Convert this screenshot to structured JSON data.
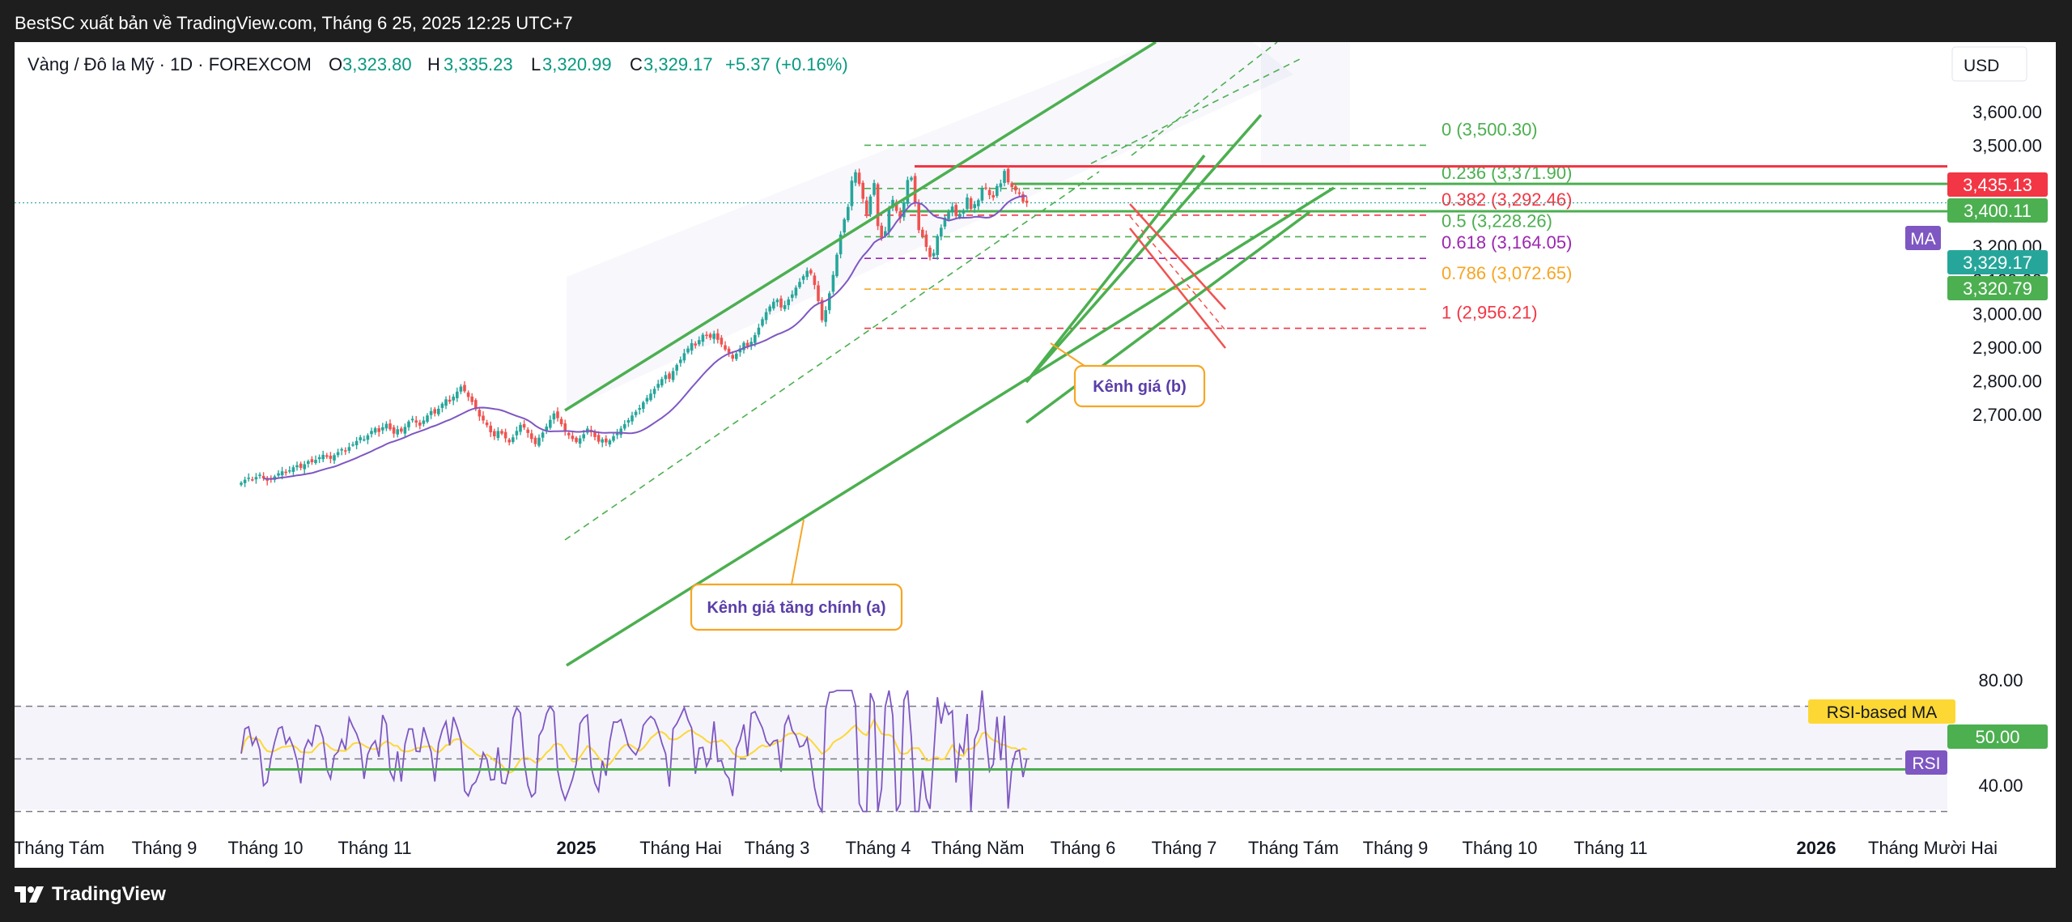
{
  "header": {
    "publisher_line": "BestSC xuất bản về TradingView.com, Tháng 6 25, 2025 12:25 UTC+7"
  },
  "legend": {
    "symbol": "Vàng / Đô la Mỹ · 1D · FOREXCOM",
    "o_label": "O",
    "o_value": "3,323.80",
    "h_label": "H",
    "h_value": "3,335.23",
    "l_label": "L",
    "l_value": "3,320.99",
    "c_label": "C",
    "c_value": "3,329.17",
    "change": "+5.37 (+0.16%)"
  },
  "currency": "USD",
  "colors": {
    "up": "#26a69a",
    "down": "#ef5350",
    "channel": "#4caf50",
    "ma": "#7e57c2",
    "rsi": "#7e57c2",
    "rsi_ma": "#fdd835",
    "resistance": "#f23645",
    "fib_orange": "#f6a623"
  },
  "annotations": {
    "channel_b": "Kênh giá (b)",
    "channel_a": "Kênh giá tăng chính (a)"
  },
  "tags": {
    "ma": "MA",
    "rsi": "RSI",
    "rsi_ma": "RSI-based MA"
  },
  "footer": {
    "brand": "TradingView"
  },
  "chart_data": {
    "type": "candlestick",
    "timeframe": "1D",
    "price_axis": {
      "ticks": [
        "3,600.00",
        "3,500.00",
        "3,400.00",
        "3,300.00",
        "3,200.00",
        "3,100.00",
        "3,000.00",
        "2,900.00",
        "2,800.00",
        "2,700.00"
      ],
      "range": [
        2620,
        3720
      ]
    },
    "time_axis": {
      "labels": [
        "Tháng Tám",
        "Tháng 9",
        "Tháng 10",
        "Tháng 11",
        "2025",
        "Tháng Hai",
        "Tháng 3",
        "Tháng 4",
        "Tháng Năm",
        "Tháng 6",
        "Tháng 7",
        "Tháng Tám",
        "Tháng 9",
        "Tháng 10",
        "Tháng 11",
        "2026",
        "Tháng Mười Hai"
      ],
      "bold": [
        "2025",
        "2026"
      ]
    },
    "price_labels": [
      {
        "text": "3,435.13",
        "value": 3435.13,
        "color": "#f23645"
      },
      {
        "text": "3,400.11",
        "value": 3400.11,
        "color": "#4caf50"
      },
      {
        "text": "3,329.17",
        "value": 3329.17,
        "color": "#26a69a"
      },
      {
        "text": "3,320.79",
        "value": 3320.79,
        "color": "#4caf50"
      }
    ],
    "fibonacci": [
      {
        "level": "0",
        "price": 3500.3,
        "label": "0 (3,500.30)",
        "color": "#4caf50"
      },
      {
        "level": "0.236",
        "price": 3371.9,
        "label": "0.236 (3,371.90)",
        "color": "#4caf50"
      },
      {
        "level": "0.382",
        "price": 3292.46,
        "label": "0.382 (3,292.46)",
        "color": "#f23645"
      },
      {
        "level": "0.5",
        "price": 3228.26,
        "label": "0.5 (3,228.26)",
        "color": "#4caf50"
      },
      {
        "level": "0.618",
        "price": 3164.05,
        "label": "0.618 (3,164.05)",
        "color": "#9c27b0"
      },
      {
        "level": "0.786",
        "price": 3072.65,
        "label": "0.786 (3,072.65)",
        "color": "#f6a623"
      },
      {
        "level": "1",
        "price": 2956.21,
        "label": "1 (2,956.21)",
        "color": "#f23645"
      }
    ],
    "horizontal_lines": [
      {
        "price": 3435.13,
        "color": "#f23645"
      },
      {
        "price": 3400.11,
        "color": "#4caf50"
      },
      {
        "price": 3320.79,
        "color": "#4caf50"
      }
    ],
    "closes": [
      2497,
      2506,
      2512,
      2507,
      2514,
      2521,
      2510,
      2503,
      2508,
      2516,
      2525,
      2531,
      2527,
      2534,
      2543,
      2549,
      2541,
      2552,
      2561,
      2558,
      2565,
      2573,
      2580,
      2574,
      2568,
      2579,
      2588,
      2597,
      2591,
      2603,
      2611,
      2621,
      2632,
      2626,
      2638,
      2651,
      2659,
      2648,
      2662,
      2672,
      2656,
      2643,
      2656,
      2649,
      2663,
      2679,
      2687,
      2676,
      2667,
      2682,
      2697,
      2710,
      2703,
      2717,
      2732,
      2745,
      2738,
      2753,
      2768,
      2783,
      2769,
      2752,
      2737,
      2716,
      2694,
      2682,
      2668,
      2647,
      2635,
      2651,
      2643,
      2629,
      2617,
      2632,
      2651,
      2669,
      2661,
      2645,
      2627,
      2612,
      2631,
      2646,
      2664,
      2684,
      2703,
      2689,
      2671,
      2651,
      2638,
      2627,
      2618,
      2629,
      2641,
      2658,
      2647,
      2633,
      2619,
      2626,
      2617,
      2623,
      2635,
      2644,
      2658,
      2671,
      2683,
      2697,
      2708,
      2719,
      2736,
      2749,
      2762,
      2776,
      2791,
      2805,
      2817,
      2806,
      2829,
      2847,
      2863,
      2882,
      2896,
      2912,
      2905,
      2921,
      2937,
      2934,
      2928,
      2940,
      2922,
      2908,
      2893,
      2883,
      2866,
      2881,
      2896,
      2913,
      2901,
      2916,
      2936,
      2958,
      2983,
      3004,
      3021,
      3035,
      3041,
      3018,
      3025,
      3042,
      3057,
      3077,
      3094,
      3111,
      3127,
      3119,
      3085,
      3037,
      2980,
      3010,
      3060,
      3115,
      3175,
      3235,
      3280,
      3317,
      3395,
      3420,
      3385,
      3341,
      3295,
      3348,
      3388,
      3260,
      3225,
      3245,
      3312,
      3338,
      3305,
      3283,
      3331,
      3397,
      3404,
      3330,
      3248,
      3229,
      3198,
      3168,
      3180,
      3230,
      3255,
      3285,
      3301,
      3318,
      3290,
      3296,
      3305,
      3345,
      3311,
      3325,
      3337,
      3371,
      3372,
      3352,
      3345,
      3379,
      3387,
      3424,
      3390,
      3376,
      3366,
      3356,
      3332,
      3329
    ],
    "ma_length_shown": true,
    "rsi": {
      "ticks": [
        "80.00",
        "40.00"
      ],
      "levels": [
        70,
        50,
        30
      ],
      "range": [
        28,
        80
      ],
      "last": 50.0,
      "last_label": "50.00"
    }
  }
}
